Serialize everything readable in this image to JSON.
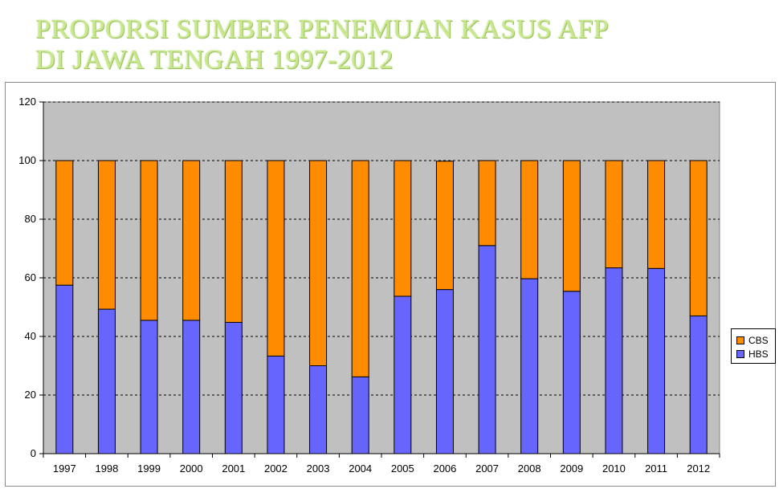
{
  "title": {
    "line1": "PROPORSI SUMBER PENEMUAN KASUS AFP",
    "line2": "DI JAWA TENGAH 1997-2012"
  },
  "chart_data": {
    "type": "bar",
    "stacked": true,
    "categories": [
      "1997",
      "1998",
      "1999",
      "2000",
      "2001",
      "2002",
      "2003",
      "2004",
      "2005",
      "2006",
      "2007",
      "2008",
      "2009",
      "2010",
      "2011",
      "2012"
    ],
    "series": [
      {
        "name": "HBS",
        "color": "#6666ff",
        "values": [
          57.5,
          49.3,
          45.5,
          45.5,
          44.8,
          33.3,
          30,
          26.2,
          53.7,
          56,
          71,
          59.7,
          55.4,
          63.4,
          63.2,
          47
        ]
      },
      {
        "name": "CBS",
        "color": "#ff8c00",
        "values": [
          42.5,
          50.7,
          54.5,
          54.5,
          55.2,
          66.7,
          70,
          73.8,
          46.3,
          43.8,
          29,
          40.3,
          44.6,
          36.6,
          36.8,
          53
        ]
      }
    ],
    "ylim": [
      0,
      120
    ],
    "yticks": [
      0,
      20,
      40,
      60,
      80,
      100,
      120
    ],
    "grid": true,
    "plot_background": "#c0c0c0",
    "legend_position": "right",
    "legend_order": [
      "CBS",
      "HBS"
    ]
  }
}
